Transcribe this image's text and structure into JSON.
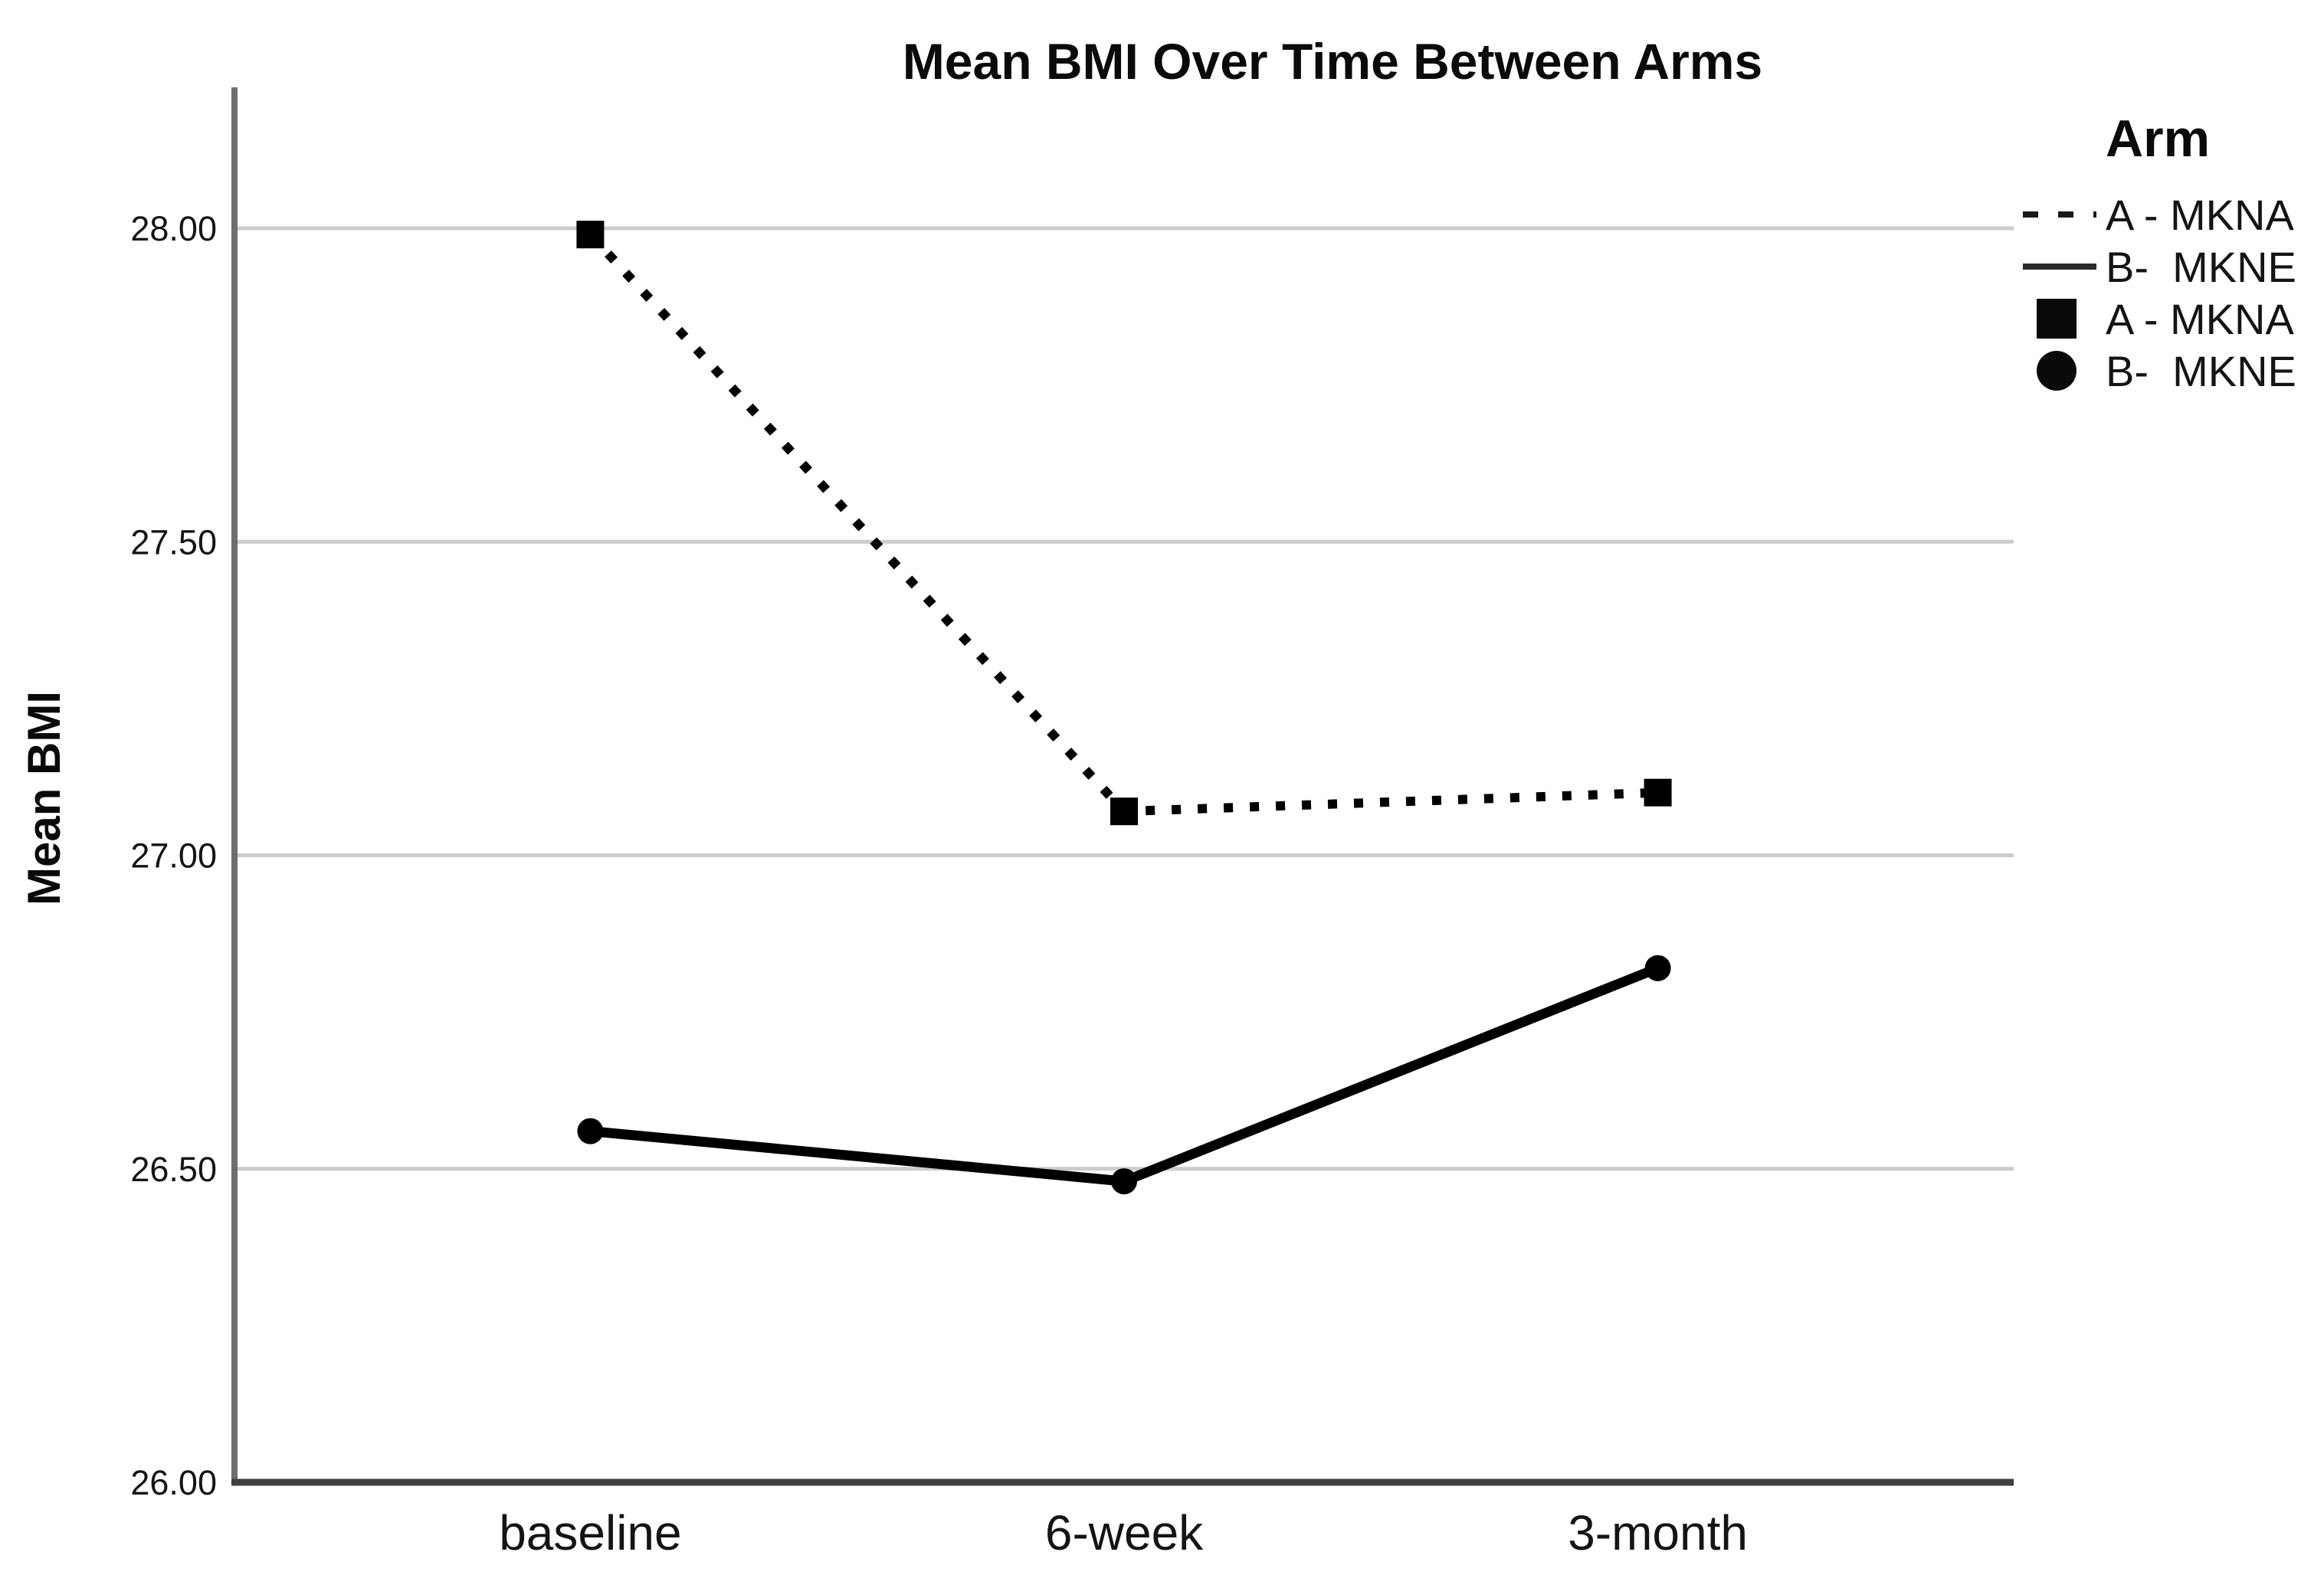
{
  "title": "Mean BMI Over Time Between Arms",
  "y_axis_label": "Mean BMI",
  "legend": {
    "title": "Arm",
    "entries": [
      {
        "label": "A - MKNA",
        "swatch": "dashed-line"
      },
      {
        "label": "B-  MKNE",
        "swatch": "solid-line"
      },
      {
        "label": "A - MKNA",
        "swatch": "square-marker"
      },
      {
        "label": "B-  MKNE",
        "swatch": "circle-marker"
      }
    ]
  },
  "chart_data": {
    "type": "line",
    "title": "Mean BMI Over Time Between Arms",
    "xlabel": "",
    "ylabel": "Mean BMI",
    "categories": [
      "baseline",
      "6-week",
      "3-month"
    ],
    "series": [
      {
        "name": "A - MKNA",
        "values": [
          27.99,
          27.07,
          27.1
        ],
        "line_style": "dotted",
        "marker": "square",
        "color": "#000000"
      },
      {
        "name": "B-  MKNE",
        "values": [
          26.56,
          26.48,
          26.82
        ],
        "line_style": "solid",
        "marker": "circle",
        "color": "#000000"
      }
    ],
    "ylim": [
      26.0,
      28.0
    ],
    "y_ticks": [
      "26.00",
      "26.50",
      "27.00",
      "27.50",
      "28.00"
    ],
    "grid": true,
    "legend_position": "right",
    "legend_title": "Arm"
  },
  "colors": {
    "background": "#ffffff",
    "gridline": "#cccccc",
    "y_axis": "#6e6e6e",
    "x_axis": "#3f3f3f",
    "series": "#000000",
    "text": "#141414"
  }
}
